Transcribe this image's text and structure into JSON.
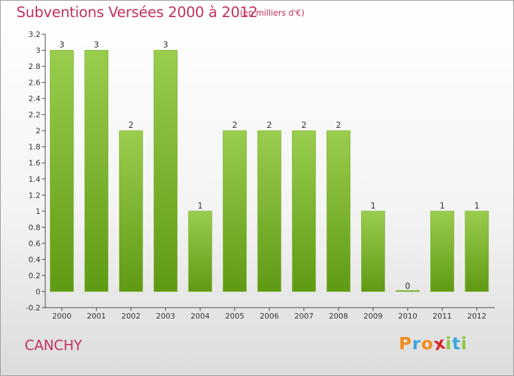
{
  "header": {
    "title": "Subventions Versées 2000 à 2012",
    "subtitle": "(en milliers d'€)"
  },
  "footer": {
    "town": "CANCHY",
    "brand": [
      "P",
      "r",
      "o",
      "x",
      "i",
      "t",
      "i"
    ]
  },
  "colors": {
    "title": "#c0315d",
    "bar_top": "#9acd4e",
    "bar_bottom": "#5f9a13",
    "brand": [
      "#f28c1c",
      "#3ea6da",
      "#f28c1c",
      "#d8262e",
      "#8cc63f",
      "#3ea6da",
      "#8cc63f"
    ]
  },
  "chart_data": {
    "type": "bar",
    "categories": [
      "2000",
      "2001",
      "2002",
      "2003",
      "2004",
      "2005",
      "2006",
      "2007",
      "2008",
      "2009",
      "2010",
      "2011",
      "2012"
    ],
    "values": [
      3,
      3,
      2,
      3,
      1,
      2,
      2,
      2,
      2,
      1,
      0,
      1,
      1
    ],
    "data_labels": [
      "3",
      "3",
      "2",
      "3",
      "1",
      "2",
      "2",
      "2",
      "2",
      "1",
      "0",
      "1",
      "1"
    ],
    "ylim": [
      -0.2,
      3.2
    ],
    "yticks": [
      "-0.2",
      "0",
      "0.2",
      "0.4",
      "0.6",
      "0.8",
      "1",
      "1.2",
      "1.4",
      "1.6",
      "1.8",
      "2",
      "2.2",
      "2.4",
      "2.6",
      "2.8",
      "3",
      "3.2"
    ],
    "grid": false,
    "legend": "none"
  }
}
